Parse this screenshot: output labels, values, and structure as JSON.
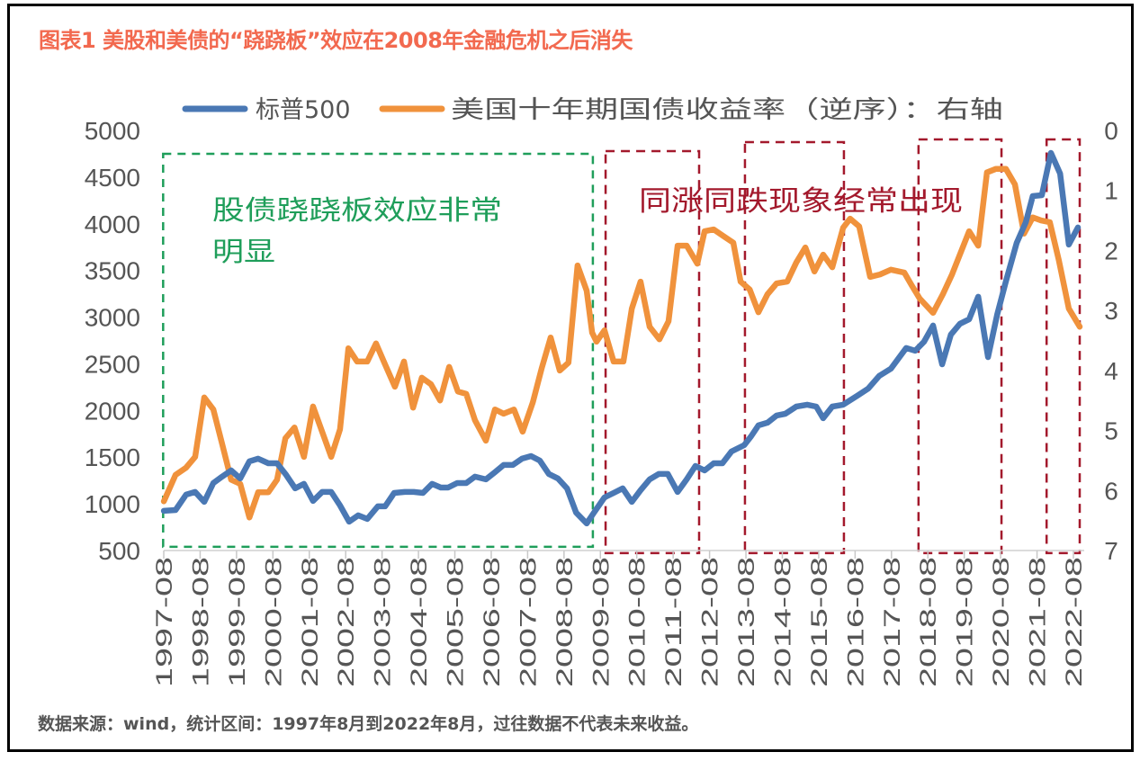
{
  "title": "图表1 美股和美债的“跷跷板”效应在2008年金融危机之后消失",
  "footer": "数据来源：wind，统计区间：1997年8月到2022年8月，过往数据不代表未来收益。",
  "colors": {
    "title": "#f2694f",
    "sp500": "#4a78b4",
    "yield": "#f0923c",
    "green_annotation": "#1f9e5a",
    "red_annotation": "#a3192c",
    "axis_text": "#555555"
  },
  "chart_data": {
    "type": "line",
    "title": "图表1 美股和美债的“跷跷板”效应在2008年金融危机之后消失",
    "legend": {
      "placement": "top",
      "entries": [
        "标普500",
        "美国十年期国债收益率（逆序）：右轴"
      ]
    },
    "x_ticks": [
      "1997-08",
      "1998-08",
      "1999-08",
      "2000-08",
      "2001-08",
      "2002-08",
      "2003-08",
      "2004-08",
      "2005-08",
      "2006-08",
      "2007-08",
      "2008-08",
      "2009-08",
      "2010-08",
      "2011-08",
      "2012-08",
      "2013-08",
      "2014-08",
      "2015-08",
      "2016-08",
      "2017-08",
      "2018-08",
      "2019-08",
      "2020-08",
      "2021-08",
      "2022-08"
    ],
    "x_range_years": [
      1997.667,
      2022.667
    ],
    "y_left": {
      "range": [
        500,
        5000
      ],
      "ticks": [
        "5000",
        "4500",
        "4000",
        "3500",
        "3000",
        "2500",
        "2000",
        "1500",
        "1000",
        "500"
      ]
    },
    "y_right": {
      "range": [
        0,
        7
      ],
      "inverted": true,
      "ticks": [
        "0",
        "1",
        "2",
        "3",
        "4",
        "5",
        "6",
        "7"
      ]
    },
    "grid": false,
    "series": [
      {
        "name": "标普500",
        "axis": "left",
        "points": [
          [
            1997.67,
            925
          ],
          [
            1997.99,
            934
          ],
          [
            1998.28,
            1098
          ],
          [
            1998.53,
            1127
          ],
          [
            1998.78,
            1021
          ],
          [
            1999.03,
            1223
          ],
          [
            1999.27,
            1291
          ],
          [
            1999.52,
            1358
          ],
          [
            1999.77,
            1272
          ],
          [
            2000.02,
            1455
          ],
          [
            2000.26,
            1484
          ],
          [
            2000.54,
            1435
          ],
          [
            2000.78,
            1435
          ],
          [
            2001.03,
            1310
          ],
          [
            2001.28,
            1166
          ],
          [
            2001.52,
            1214
          ],
          [
            2001.77,
            1031
          ],
          [
            2002.02,
            1127
          ],
          [
            2002.27,
            1127
          ],
          [
            2002.51,
            983
          ],
          [
            2002.76,
            809
          ],
          [
            2003.01,
            877
          ],
          [
            2003.26,
            838
          ],
          [
            2003.55,
            973
          ],
          [
            2003.75,
            973
          ],
          [
            2004.0,
            1117
          ],
          [
            2004.29,
            1127
          ],
          [
            2004.54,
            1127
          ],
          [
            2004.79,
            1117
          ],
          [
            2005.04,
            1214
          ],
          [
            2005.28,
            1175
          ],
          [
            2005.48,
            1175
          ],
          [
            2005.73,
            1223
          ],
          [
            2005.98,
            1223
          ],
          [
            2006.22,
            1291
          ],
          [
            2006.52,
            1262
          ],
          [
            2006.77,
            1339
          ],
          [
            2007.01,
            1416
          ],
          [
            2007.26,
            1416
          ],
          [
            2007.51,
            1484
          ],
          [
            2007.76,
            1512
          ],
          [
            2008.0,
            1464
          ],
          [
            2008.25,
            1320
          ],
          [
            2008.5,
            1272
          ],
          [
            2008.75,
            1166
          ],
          [
            2009.0,
            906
          ],
          [
            2009.29,
            790
          ],
          [
            2009.49,
            906
          ],
          [
            2009.78,
            1069
          ],
          [
            2010.03,
            1117
          ],
          [
            2010.28,
            1166
          ],
          [
            2010.53,
            1021
          ],
          [
            2010.77,
            1146
          ],
          [
            2011.02,
            1262
          ],
          [
            2011.27,
            1320
          ],
          [
            2011.52,
            1320
          ],
          [
            2011.79,
            1127
          ],
          [
            2012.04,
            1262
          ],
          [
            2012.28,
            1406
          ],
          [
            2012.53,
            1358
          ],
          [
            2012.78,
            1435
          ],
          [
            2013.02,
            1435
          ],
          [
            2013.27,
            1561
          ],
          [
            2013.62,
            1628
          ],
          [
            2013.81,
            1724
          ],
          [
            2014.01,
            1840
          ],
          [
            2014.26,
            1869
          ],
          [
            2014.51,
            1946
          ],
          [
            2014.75,
            1965
          ],
          [
            2015.05,
            2042
          ],
          [
            2015.35,
            2062
          ],
          [
            2015.6,
            2042
          ],
          [
            2015.79,
            1917
          ],
          [
            2016.04,
            2042
          ],
          [
            2016.34,
            2062
          ],
          [
            2016.73,
            2158
          ],
          [
            2017.03,
            2235
          ],
          [
            2017.33,
            2370
          ],
          [
            2017.65,
            2447
          ],
          [
            2018.07,
            2669
          ],
          [
            2018.32,
            2640
          ],
          [
            2018.56,
            2736
          ],
          [
            2018.81,
            2910
          ],
          [
            2019.06,
            2495
          ],
          [
            2019.3,
            2813
          ],
          [
            2019.55,
            2929
          ],
          [
            2019.8,
            2977
          ],
          [
            2020.05,
            3218
          ],
          [
            2020.32,
            2572
          ],
          [
            2020.57,
            3025
          ],
          [
            2020.81,
            3381
          ],
          [
            2021.11,
            3796
          ],
          [
            2021.36,
            4017
          ],
          [
            2021.55,
            4297
          ],
          [
            2021.8,
            4306
          ],
          [
            2022.05,
            4759
          ],
          [
            2022.3,
            4538
          ],
          [
            2022.54,
            3777
          ],
          [
            2022.79,
            3960
          ]
        ]
      },
      {
        "name": "美国十年期国债收益率（逆序）：右轴",
        "axis": "right",
        "points": [
          [
            1997.67,
            6.18
          ],
          [
            1997.99,
            5.74
          ],
          [
            1998.28,
            5.62
          ],
          [
            1998.53,
            5.44
          ],
          [
            1998.78,
            4.45
          ],
          [
            1999.03,
            4.65
          ],
          [
            1999.27,
            5.22
          ],
          [
            1999.52,
            5.82
          ],
          [
            1999.77,
            5.89
          ],
          [
            2000.02,
            6.45
          ],
          [
            2000.26,
            6.03
          ],
          [
            2000.54,
            6.03
          ],
          [
            2000.78,
            5.82
          ],
          [
            2001.01,
            5.13
          ],
          [
            2001.26,
            4.95
          ],
          [
            2001.52,
            5.44
          ],
          [
            2001.77,
            4.6
          ],
          [
            2002.02,
            5.02
          ],
          [
            2002.27,
            5.44
          ],
          [
            2002.51,
            4.98
          ],
          [
            2002.74,
            3.63
          ],
          [
            2002.98,
            3.85
          ],
          [
            2003.26,
            3.85
          ],
          [
            2003.5,
            3.55
          ],
          [
            2003.75,
            3.9
          ],
          [
            2004.02,
            4.27
          ],
          [
            2004.27,
            3.85
          ],
          [
            2004.52,
            4.62
          ],
          [
            2004.76,
            4.12
          ],
          [
            2005.01,
            4.23
          ],
          [
            2005.26,
            4.5
          ],
          [
            2005.51,
            3.94
          ],
          [
            2005.75,
            4.35
          ],
          [
            2005.98,
            4.39
          ],
          [
            2006.22,
            4.83
          ],
          [
            2006.52,
            5.17
          ],
          [
            2006.77,
            4.65
          ],
          [
            2007.01,
            4.72
          ],
          [
            2007.29,
            4.65
          ],
          [
            2007.53,
            5.02
          ],
          [
            2007.81,
            4.53
          ],
          [
            2008.05,
            3.97
          ],
          [
            2008.3,
            3.45
          ],
          [
            2008.55,
            4.0
          ],
          [
            2008.79,
            3.87
          ],
          [
            2009.04,
            2.25
          ],
          [
            2009.29,
            2.67
          ],
          [
            2009.44,
            3.37
          ],
          [
            2009.56,
            3.52
          ],
          [
            2009.78,
            3.33
          ],
          [
            2010.03,
            3.85
          ],
          [
            2010.3,
            3.85
          ],
          [
            2010.53,
            2.97
          ],
          [
            2010.77,
            2.52
          ],
          [
            2011.02,
            3.27
          ],
          [
            2011.29,
            3.48
          ],
          [
            2011.54,
            3.18
          ],
          [
            2011.79,
            1.92
          ],
          [
            2012.04,
            1.92
          ],
          [
            2012.33,
            2.22
          ],
          [
            2012.53,
            1.68
          ],
          [
            2012.78,
            1.65
          ],
          [
            2013.07,
            1.77
          ],
          [
            2013.32,
            1.87
          ],
          [
            2013.52,
            2.52
          ],
          [
            2013.77,
            2.65
          ],
          [
            2014.01,
            3.03
          ],
          [
            2014.26,
            2.73
          ],
          [
            2014.51,
            2.55
          ],
          [
            2014.8,
            2.52
          ],
          [
            2015.05,
            2.2
          ],
          [
            2015.3,
            1.95
          ],
          [
            2015.55,
            2.35
          ],
          [
            2015.79,
            2.07
          ],
          [
            2016.04,
            2.28
          ],
          [
            2016.34,
            1.62
          ],
          [
            2016.53,
            1.47
          ],
          [
            2016.78,
            1.6
          ],
          [
            2017.08,
            2.44
          ],
          [
            2017.35,
            2.4
          ],
          [
            2017.65,
            2.32
          ],
          [
            2018.02,
            2.37
          ],
          [
            2018.22,
            2.58
          ],
          [
            2018.44,
            2.8
          ],
          [
            2018.81,
            3.04
          ],
          [
            2019.08,
            2.73
          ],
          [
            2019.33,
            2.4
          ],
          [
            2019.8,
            1.68
          ],
          [
            2020.05,
            1.92
          ],
          [
            2020.29,
            0.7
          ],
          [
            2020.54,
            0.64
          ],
          [
            2020.81,
            0.64
          ],
          [
            2021.06,
            0.9
          ],
          [
            2021.31,
            1.72
          ],
          [
            2021.55,
            1.45
          ],
          [
            2021.78,
            1.5
          ],
          [
            2022.02,
            1.53
          ],
          [
            2022.27,
            2.17
          ],
          [
            2022.54,
            2.97
          ],
          [
            2022.84,
            3.27
          ]
        ]
      }
    ],
    "annotations": [
      {
        "name": "seesaw-period",
        "color": "green",
        "text_lines": [
          "股债跷跷板效应非常",
          "明显"
        ],
        "year_range": [
          1997.65,
          2009.46
        ],
        "left_value_range": [
          540,
          4750
        ]
      },
      {
        "name": "co-movement-note",
        "color": "red",
        "text_lines": [
          "同涨同跌现象经常出现"
        ]
      },
      {
        "name": "co-movement-box-1",
        "color": "red",
        "year_range": [
          2009.81,
          2012.38
        ],
        "left_value_range": [
          472,
          4778
        ]
      },
      {
        "name": "co-movement-box-2",
        "color": "red",
        "year_range": [
          2013.64,
          2016.36
        ],
        "left_value_range": [
          472,
          4875
        ]
      },
      {
        "name": "co-movement-box-3",
        "color": "red",
        "year_range": [
          2018.41,
          2020.69
        ],
        "left_value_range": [
          472,
          4904
        ]
      },
      {
        "name": "co-movement-box-4",
        "color": "red",
        "year_range": [
          2021.93,
          2022.84
        ],
        "left_value_range": [
          472,
          4904
        ]
      }
    ]
  }
}
